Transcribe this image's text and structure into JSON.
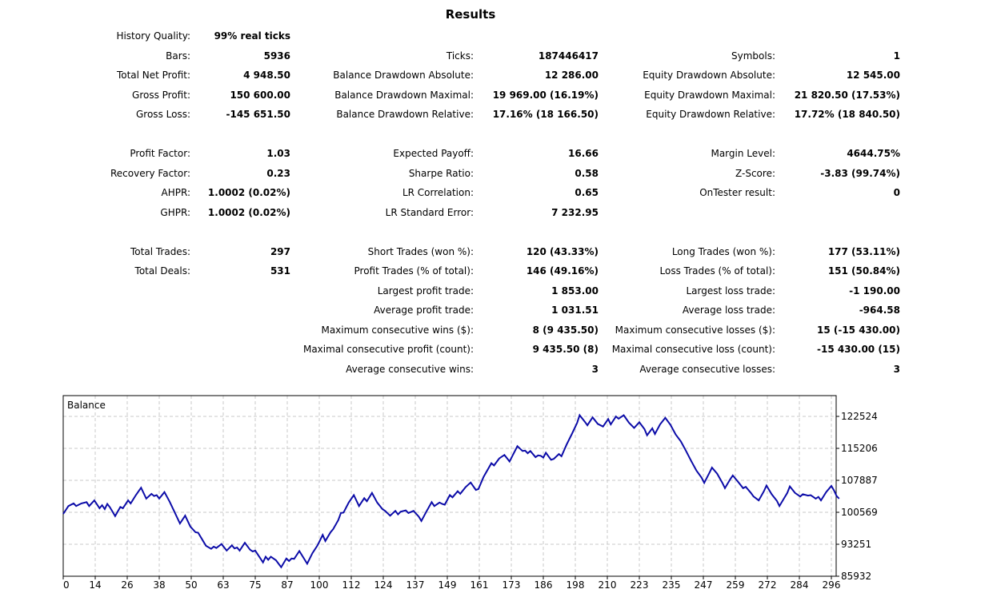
{
  "title": "Results",
  "stats": [
    {
      "label": "History Quality:",
      "value": "99% real ticks",
      "col": 0,
      "row": 0
    },
    {
      "label": "Bars:",
      "value": "5936",
      "col": 0,
      "row": 1
    },
    {
      "label": "Ticks:",
      "value": "187446417",
      "col": 1,
      "row": 1
    },
    {
      "label": "Symbols:",
      "value": "1",
      "col": 2,
      "row": 1
    },
    {
      "label": "Total Net Profit:",
      "value": "4 948.50",
      "col": 0,
      "row": 2
    },
    {
      "label": "Balance Drawdown Absolute:",
      "value": "12 286.00",
      "col": 1,
      "row": 2
    },
    {
      "label": "Equity Drawdown Absolute:",
      "value": "12 545.00",
      "col": 2,
      "row": 2
    },
    {
      "label": "Gross Profit:",
      "value": "150 600.00",
      "col": 0,
      "row": 3
    },
    {
      "label": "Balance Drawdown Maximal:",
      "value": "19 969.00 (16.19%)",
      "col": 1,
      "row": 3
    },
    {
      "label": "Equity Drawdown Maximal:",
      "value": "21 820.50 (17.53%)",
      "col": 2,
      "row": 3
    },
    {
      "label": "Gross Loss:",
      "value": "-145 651.50",
      "col": 0,
      "row": 4
    },
    {
      "label": "Balance Drawdown Relative:",
      "value": "17.16% (18 166.50)",
      "col": 1,
      "row": 4
    },
    {
      "label": "Equity Drawdown Relative:",
      "value": "17.72% (18 840.50)",
      "col": 2,
      "row": 4
    },
    {
      "label": "Profit Factor:",
      "value": "1.03",
      "col": 0,
      "row": 6
    },
    {
      "label": "Expected Payoff:",
      "value": "16.66",
      "col": 1,
      "row": 6
    },
    {
      "label": "Margin Level:",
      "value": "4644.75%",
      "col": 2,
      "row": 6
    },
    {
      "label": "Recovery Factor:",
      "value": "0.23",
      "col": 0,
      "row": 7
    },
    {
      "label": "Sharpe Ratio:",
      "value": "0.58",
      "col": 1,
      "row": 7
    },
    {
      "label": "Z-Score:",
      "value": "-3.83 (99.74%)",
      "col": 2,
      "row": 7
    },
    {
      "label": "AHPR:",
      "value": "1.0002 (0.02%)",
      "col": 0,
      "row": 8
    },
    {
      "label": "LR Correlation:",
      "value": "0.65",
      "col": 1,
      "row": 8
    },
    {
      "label": "OnTester result:",
      "value": "0",
      "col": 2,
      "row": 8
    },
    {
      "label": "GHPR:",
      "value": "1.0002 (0.02%)",
      "col": 0,
      "row": 9
    },
    {
      "label": "LR Standard Error:",
      "value": "7 232.95",
      "col": 1,
      "row": 9
    },
    {
      "label": "Total Trades:",
      "value": "297",
      "col": 0,
      "row": 11
    },
    {
      "label": "Short Trades (won %):",
      "value": "120 (43.33%)",
      "col": 1,
      "row": 11
    },
    {
      "label": "Long Trades (won %):",
      "value": "177 (53.11%)",
      "col": 2,
      "row": 11
    },
    {
      "label": "Total Deals:",
      "value": "531",
      "col": 0,
      "row": 12
    },
    {
      "label": "Profit Trades (% of total):",
      "value": "146 (49.16%)",
      "col": 1,
      "row": 12
    },
    {
      "label": "Loss Trades (% of total):",
      "value": "151 (50.84%)",
      "col": 2,
      "row": 12
    },
    {
      "label": "Largest profit trade:",
      "value": "1 853.00",
      "col": 1,
      "row": 13
    },
    {
      "label": "Largest loss trade:",
      "value": "-1 190.00",
      "col": 2,
      "row": 13
    },
    {
      "label": "Average profit trade:",
      "value": "1 031.51",
      "col": 1,
      "row": 14
    },
    {
      "label": "Average loss trade:",
      "value": "-964.58",
      "col": 2,
      "row": 14
    },
    {
      "label": "Maximum consecutive wins ($):",
      "value": "8 (9 435.50)",
      "col": 1,
      "row": 15
    },
    {
      "label": "Maximum consecutive losses ($):",
      "value": "15 (-15 430.00)",
      "col": 2,
      "row": 15
    },
    {
      "label": "Maximal consecutive profit (count):",
      "value": "9 435.50 (8)",
      "col": 1,
      "row": 16
    },
    {
      "label": "Maximal consecutive loss (count):",
      "value": "-15 430.00 (15)",
      "col": 2,
      "row": 16
    },
    {
      "label": "Average consecutive wins:",
      "value": "3",
      "col": 1,
      "row": 17
    },
    {
      "label": "Average consecutive losses:",
      "value": "3",
      "col": 2,
      "row": 17
    }
  ],
  "chart_data": {
    "type": "line",
    "title": "Balance",
    "xlabel": "",
    "ylabel": "",
    "x_ticks": [
      0,
      14,
      26,
      38,
      50,
      63,
      75,
      87,
      100,
      112,
      124,
      137,
      149,
      161,
      173,
      186,
      198,
      210,
      223,
      235,
      247,
      259,
      272,
      284,
      296
    ],
    "y_ticks": [
      85932,
      93251,
      100569,
      107887,
      115206,
      122524
    ],
    "xlim": [
      0,
      299
    ],
    "ylim": [
      85932,
      126183
    ],
    "grid": true,
    "line_color": "#0c0ca8",
    "series": [
      {
        "name": "Balance",
        "points": [
          [
            0,
            100200
          ],
          [
            2,
            102000
          ],
          [
            4,
            102600
          ],
          [
            5,
            102000
          ],
          [
            7,
            102600
          ],
          [
            9,
            102900
          ],
          [
            10,
            102000
          ],
          [
            12,
            103300
          ],
          [
            14,
            101500
          ],
          [
            15,
            102200
          ],
          [
            16,
            101300
          ],
          [
            17,
            102500
          ],
          [
            18,
            101700
          ],
          [
            20,
            99700
          ],
          [
            22,
            101800
          ],
          [
            23,
            101500
          ],
          [
            25,
            103300
          ],
          [
            26,
            102600
          ],
          [
            28,
            104500
          ],
          [
            30,
            106200
          ],
          [
            32,
            103700
          ],
          [
            34,
            104800
          ],
          [
            35,
            104300
          ],
          [
            36,
            104500
          ],
          [
            37,
            103700
          ],
          [
            39,
            105200
          ],
          [
            41,
            103000
          ],
          [
            43,
            100500
          ],
          [
            45,
            98000
          ],
          [
            47,
            99800
          ],
          [
            49,
            97300
          ],
          [
            51,
            96000
          ],
          [
            52,
            95900
          ],
          [
            55,
            92900
          ],
          [
            57,
            92200
          ],
          [
            58,
            92700
          ],
          [
            59,
            92400
          ],
          [
            61,
            93300
          ],
          [
            63,
            91800
          ],
          [
            65,
            93000
          ],
          [
            66,
            92300
          ],
          [
            67,
            92500
          ],
          [
            68,
            91800
          ],
          [
            70,
            93600
          ],
          [
            72,
            92000
          ],
          [
            73,
            91600
          ],
          [
            74,
            91800
          ],
          [
            77,
            89100
          ],
          [
            78,
            90400
          ],
          [
            79,
            89700
          ],
          [
            80,
            90400
          ],
          [
            82,
            89600
          ],
          [
            84,
            88000
          ],
          [
            86,
            90000
          ],
          [
            87,
            89400
          ],
          [
            88,
            90000
          ],
          [
            89,
            89900
          ],
          [
            91,
            91700
          ],
          [
            94,
            88800
          ],
          [
            96,
            91200
          ],
          [
            98,
            93000
          ],
          [
            100,
            95400
          ],
          [
            101,
            94000
          ],
          [
            103,
            96000
          ],
          [
            104,
            96700
          ],
          [
            106,
            98800
          ],
          [
            107,
            100400
          ],
          [
            108,
            100500
          ],
          [
            110,
            102800
          ],
          [
            112,
            104500
          ],
          [
            114,
            102000
          ],
          [
            116,
            103800
          ],
          [
            117,
            103100
          ],
          [
            119,
            105000
          ],
          [
            121,
            102800
          ],
          [
            123,
            101300
          ],
          [
            124,
            100900
          ],
          [
            126,
            99800
          ],
          [
            128,
            100900
          ],
          [
            129,
            100100
          ],
          [
            130,
            100700
          ],
          [
            132,
            101000
          ],
          [
            133,
            100400
          ],
          [
            135,
            100900
          ],
          [
            137,
            99600
          ],
          [
            138,
            98600
          ],
          [
            140,
            100800
          ],
          [
            142,
            102900
          ],
          [
            143,
            102000
          ],
          [
            145,
            102800
          ],
          [
            146,
            102500
          ],
          [
            147,
            102300
          ],
          [
            149,
            104500
          ],
          [
            150,
            104000
          ],
          [
            152,
            105400
          ],
          [
            153,
            104800
          ],
          [
            155,
            106300
          ],
          [
            157,
            107400
          ],
          [
            159,
            105700
          ],
          [
            160,
            105900
          ],
          [
            162,
            108700
          ],
          [
            165,
            111800
          ],
          [
            166,
            111300
          ],
          [
            168,
            112900
          ],
          [
            170,
            113700
          ],
          [
            172,
            112200
          ],
          [
            175,
            115700
          ],
          [
            177,
            114600
          ],
          [
            178,
            114700
          ],
          [
            179,
            114100
          ],
          [
            180,
            114600
          ],
          [
            182,
            113200
          ],
          [
            183,
            113600
          ],
          [
            184,
            113500
          ],
          [
            185,
            113100
          ],
          [
            186,
            114200
          ],
          [
            188,
            112600
          ],
          [
            189,
            112800
          ],
          [
            191,
            113900
          ],
          [
            192,
            113400
          ],
          [
            194,
            116100
          ],
          [
            196,
            118500
          ],
          [
            198,
            121000
          ],
          [
            199,
            122800
          ],
          [
            201,
            121300
          ],
          [
            202,
            120500
          ],
          [
            204,
            122300
          ],
          [
            206,
            120800
          ],
          [
            208,
            120200
          ],
          [
            210,
            121900
          ],
          [
            211,
            120700
          ],
          [
            213,
            122500
          ],
          [
            214,
            122000
          ],
          [
            216,
            122800
          ],
          [
            218,
            121100
          ],
          [
            220,
            119900
          ],
          [
            222,
            121200
          ],
          [
            224,
            119600
          ],
          [
            225,
            118200
          ],
          [
            227,
            119800
          ],
          [
            228,
            118500
          ],
          [
            230,
            120700
          ],
          [
            232,
            122200
          ],
          [
            234,
            120600
          ],
          [
            236,
            118400
          ],
          [
            238,
            116800
          ],
          [
            240,
            114600
          ],
          [
            242,
            112300
          ],
          [
            244,
            110100
          ],
          [
            246,
            108500
          ],
          [
            247,
            107300
          ],
          [
            249,
            109600
          ],
          [
            250,
            110800
          ],
          [
            252,
            109400
          ],
          [
            254,
            107300
          ],
          [
            255,
            106100
          ],
          [
            257,
            108100
          ],
          [
            258,
            109000
          ],
          [
            260,
            107600
          ],
          [
            262,
            106100
          ],
          [
            263,
            106400
          ],
          [
            265,
            105000
          ],
          [
            266,
            104200
          ],
          [
            268,
            103300
          ],
          [
            270,
            105400
          ],
          [
            271,
            106700
          ],
          [
            273,
            104700
          ],
          [
            275,
            103200
          ],
          [
            276,
            102000
          ],
          [
            278,
            104000
          ],
          [
            279,
            105000
          ],
          [
            280,
            106500
          ],
          [
            282,
            105000
          ],
          [
            284,
            104200
          ],
          [
            285,
            104700
          ],
          [
            287,
            104400
          ],
          [
            288,
            104500
          ],
          [
            290,
            103700
          ],
          [
            291,
            104100
          ],
          [
            292,
            103300
          ],
          [
            294,
            105200
          ],
          [
            296,
            106600
          ],
          [
            297,
            105600
          ],
          [
            298,
            104300
          ],
          [
            299,
            103700
          ]
        ]
      }
    ]
  }
}
